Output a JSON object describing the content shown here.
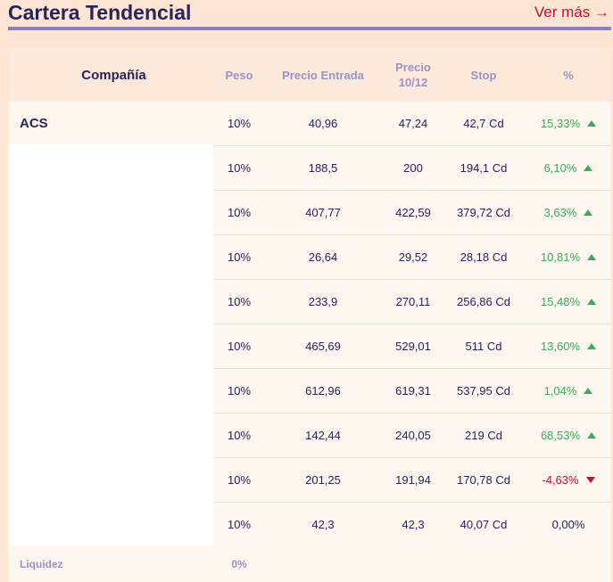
{
  "header": {
    "title": "Cartera Tendencial",
    "ver_mas": "Ver más →"
  },
  "table": {
    "columns": {
      "company": "Compañía",
      "peso": "Peso",
      "precio_entrada": "Precio Entrada",
      "precio_fecha": "Precio 10/12",
      "stop": "Stop",
      "pct": "%"
    },
    "rows": [
      {
        "company": "ACS",
        "peso": "10%",
        "entrada": "40,96",
        "precio": "47,24",
        "stop": "42,7 Cd",
        "pct": "15,33%",
        "trend": "up"
      },
      {
        "company": "",
        "peso": "10%",
        "entrada": "188,5",
        "precio": "200",
        "stop": "194,1 Cd",
        "pct": "6,10%",
        "trend": "up"
      },
      {
        "company": "",
        "peso": "10%",
        "entrada": "407,77",
        "precio": "422,59",
        "stop": "379,72 Cd",
        "pct": "3,63%",
        "trend": "up"
      },
      {
        "company": "",
        "peso": "10%",
        "entrada": "26,64",
        "precio": "29,52",
        "stop": "28,18 Cd",
        "pct": "10,81%",
        "trend": "up"
      },
      {
        "company": "",
        "peso": "10%",
        "entrada": "233,9",
        "precio": "270,11",
        "stop": "256,86 Cd",
        "pct": "15,48%",
        "trend": "up"
      },
      {
        "company": "",
        "peso": "10%",
        "entrada": "465,69",
        "precio": "529,01",
        "stop": "511 Cd",
        "pct": "13,60%",
        "trend": "up"
      },
      {
        "company": "",
        "peso": "10%",
        "entrada": "612,96",
        "precio": "619,31",
        "stop": "537,95 Cd",
        "pct": "1,04%",
        "trend": "up"
      },
      {
        "company": "",
        "peso": "10%",
        "entrada": "142,44",
        "precio": "240,05",
        "stop": "219 Cd",
        "pct": "68,53%",
        "trend": "up"
      },
      {
        "company": "",
        "peso": "10%",
        "entrada": "201,25",
        "precio": "191,94",
        "stop": "170,78 Cd",
        "pct": "-4,63%",
        "trend": "down"
      },
      {
        "company": "",
        "peso": "10%",
        "entrada": "42,3",
        "precio": "42,3",
        "stop": "40,07 Cd",
        "pct": "0,00%",
        "trend": "flat"
      }
    ],
    "footer": {
      "label": "Liquidez",
      "peso": "0%"
    }
  },
  "colors": {
    "accent": "#29235c",
    "link": "#c8102e",
    "positive": "#3daa5c",
    "negative": "#c8102e",
    "muted": "#9a94c6"
  }
}
